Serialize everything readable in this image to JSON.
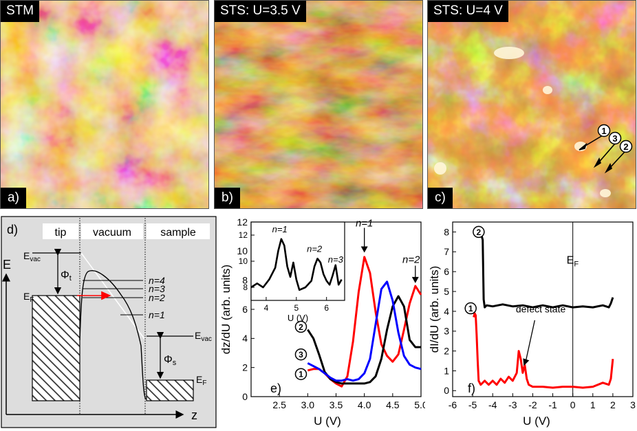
{
  "panels": {
    "a": {
      "title": "STM",
      "letter": "a)"
    },
    "b": {
      "title": "STS: U=3.5 V",
      "letter": "b)"
    },
    "c": {
      "title": "STS: U=4 V",
      "letter": "c)",
      "markers": [
        "1",
        "3",
        "2"
      ]
    }
  },
  "diagram": {
    "letter": "d)",
    "regions": [
      "tip",
      "vacuum",
      "sample"
    ],
    "energy_axis": "E",
    "z_axis": "z",
    "levels": {
      "evac_tip": "E",
      "evac_tip_sub": "vac",
      "ef_tip": "E",
      "ef_tip_sub": "F",
      "phi_t": "Φ",
      "phi_t_sub": "t",
      "phi_s": "Φ",
      "phi_s_sub": "s",
      "evac_sample": "E",
      "evac_sample_sub": "vac",
      "ef_sample": "E",
      "ef_sample_sub": "F"
    },
    "image_states": [
      "n=4",
      "n=3",
      "n=2",
      "n=1"
    ]
  },
  "chart_data": [
    {
      "id": "e",
      "type": "line",
      "letter": "e)",
      "xlabel": "U (V)",
      "ylabel": "dz/dU (arb. units)",
      "xlim": [
        2.0,
        5.0
      ],
      "ylim": [
        0,
        12
      ],
      "xticks": [
        "2.5",
        "3.0",
        "3.5",
        "4.0",
        "4.5",
        "5.0"
      ],
      "yticks": [
        "0",
        "2",
        "4",
        "6",
        "8",
        "10",
        "12"
      ],
      "peak_labels": [
        "n=1",
        "n=2"
      ],
      "series": [
        {
          "name": "1",
          "color": "#ff0000",
          "x": [
            3.0,
            3.1,
            3.2,
            3.3,
            3.4,
            3.5,
            3.6,
            3.7,
            3.8,
            3.9,
            4.0,
            4.1,
            4.2,
            4.3,
            4.4,
            4.5,
            4.6,
            4.7,
            4.8,
            4.9,
            5.0
          ],
          "y": [
            1.8,
            1.9,
            1.9,
            1.6,
            1.2,
            0.9,
            0.7,
            1.4,
            3.8,
            7.2,
            9.6,
            8.5,
            5.8,
            3.6,
            2.8,
            2.4,
            2.9,
            4.6,
            6.4,
            7.6,
            7.0
          ]
        },
        {
          "name": "2",
          "color": "#000000",
          "x": [
            3.0,
            3.1,
            3.2,
            3.3,
            3.4,
            3.5,
            3.6,
            3.7,
            3.8,
            3.9,
            4.0,
            4.1,
            4.2,
            4.3,
            4.4,
            4.5,
            4.6,
            4.7,
            4.8,
            4.9,
            5.0
          ],
          "y": [
            4.6,
            4.0,
            2.9,
            1.7,
            1.2,
            1.0,
            0.9,
            0.9,
            0.9,
            0.9,
            0.9,
            1.0,
            1.4,
            2.6,
            4.6,
            6.2,
            6.9,
            6.2,
            3.9,
            3.4,
            3.4
          ]
        },
        {
          "name": "3",
          "color": "#0000ff",
          "x": [
            3.0,
            3.1,
            3.2,
            3.3,
            3.4,
            3.5,
            3.6,
            3.7,
            3.8,
            3.9,
            4.0,
            4.1,
            4.2,
            4.3,
            4.4,
            4.5,
            4.6,
            4.7,
            4.8,
            4.9,
            5.0
          ],
          "y": [
            2.3,
            2.1,
            1.9,
            1.6,
            1.3,
            1.1,
            1.1,
            1.2,
            1.1,
            1.2,
            1.6,
            2.6,
            5.0,
            7.4,
            7.9,
            6.6,
            4.4,
            2.8,
            2.2,
            2.0,
            1.9
          ]
        }
      ],
      "inset": {
        "type": "line",
        "xlabel": "U (V)",
        "xlim": [
          3.5,
          6.6
        ],
        "ylim": [
          7,
          13
        ],
        "xticks": [
          "4",
          "5",
          "6"
        ],
        "yticks": [
          "8",
          "10",
          "12"
        ],
        "peak_labels": [
          "n=1",
          "n=2",
          "n=3"
        ],
        "series": [
          {
            "name": "inset",
            "color": "#000000",
            "x": [
              3.5,
              3.7,
              3.9,
              4.1,
              4.3,
              4.4,
              4.5,
              4.6,
              4.7,
              4.8,
              4.9,
              5.0,
              5.1,
              5.3,
              5.5,
              5.6,
              5.7,
              5.8,
              5.9,
              6.0,
              6.1,
              6.2,
              6.3,
              6.4,
              6.5
            ],
            "y": [
              8.0,
              8.3,
              8.0,
              8.6,
              9.5,
              10.8,
              11.7,
              11.2,
              9.6,
              8.8,
              9.9,
              8.6,
              7.8,
              8.0,
              8.5,
              9.6,
              10.2,
              9.9,
              9.0,
              8.5,
              8.2,
              8.9,
              9.7,
              8.2,
              8.6
            ]
          }
        ]
      }
    },
    {
      "id": "f",
      "type": "line",
      "letter": "f)",
      "xlabel": "U (V)",
      "ylabel": "dI/dU (arb. units)",
      "xlim": [
        -6,
        3
      ],
      "ylim": [
        -0.3,
        8.5
      ],
      "xticks": [
        "-6",
        "-5",
        "-4",
        "-3",
        "-2",
        "-1",
        "0",
        "1",
        "2",
        "3"
      ],
      "yticks": [
        "0",
        "1",
        "2",
        "3",
        "4",
        "5",
        "6",
        "7",
        "8"
      ],
      "vline_label": "E",
      "vline_label_sub": "F",
      "annotation": "defect state",
      "series": [
        {
          "name": "2",
          "color": "#000000",
          "x": [
            -4.6,
            -4.55,
            -4.5,
            -4.45,
            -4.4,
            -4.3,
            -4.0,
            -3.5,
            -3.0,
            -2.5,
            -2.0,
            -1.5,
            -1.0,
            -0.5,
            0.0,
            0.5,
            1.0,
            1.5,
            1.8,
            1.9,
            2.0
          ],
          "y": [
            7.9,
            7.8,
            7.6,
            4.6,
            4.2,
            4.3,
            4.25,
            4.35,
            4.25,
            4.3,
            4.2,
            4.3,
            4.2,
            4.3,
            4.2,
            4.25,
            4.2,
            4.3,
            4.2,
            4.4,
            4.7
          ]
        },
        {
          "name": "1",
          "color": "#ff0000",
          "x": [
            -4.95,
            -4.9,
            -4.85,
            -4.8,
            -4.75,
            -4.7,
            -4.6,
            -4.4,
            -4.2,
            -4.0,
            -3.8,
            -3.6,
            -3.4,
            -3.2,
            -3.0,
            -2.8,
            -2.7,
            -2.6,
            -2.5,
            -2.4,
            -2.3,
            -2.2,
            -2.0,
            -1.5,
            -1.0,
            -0.5,
            0.0,
            0.5,
            1.0,
            1.5,
            1.8,
            1.9,
            2.0
          ],
          "y": [
            3.7,
            3.9,
            3.8,
            2.8,
            1.5,
            0.5,
            0.3,
            0.5,
            0.3,
            0.5,
            0.3,
            0.6,
            0.4,
            0.7,
            0.5,
            0.9,
            2.0,
            1.6,
            0.9,
            1.3,
            0.6,
            0.3,
            0.2,
            0.2,
            0.15,
            0.2,
            0.2,
            0.15,
            0.2,
            0.4,
            0.3,
            0.6,
            1.6
          ]
        }
      ]
    }
  ]
}
